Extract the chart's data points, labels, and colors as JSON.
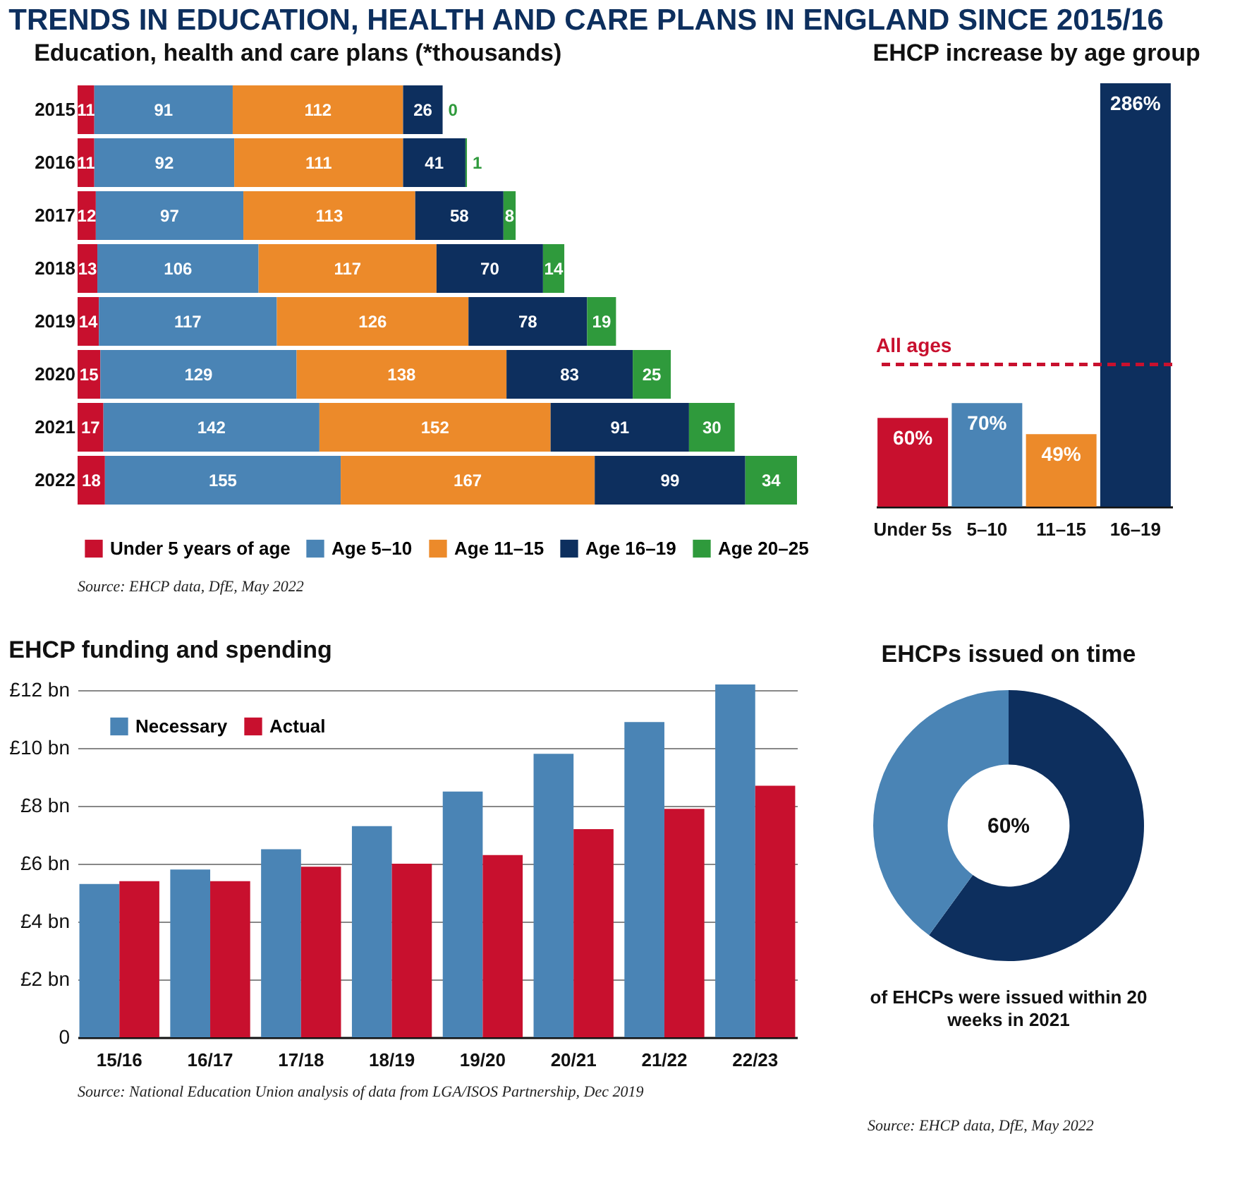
{
  "chart_data": [
    {
      "type": "bar",
      "title": "TRENDS IN EDUCATION, HEALTH AND CARE PLANS IN ENGLAND SINCE 2015/16",
      "subtitle": "Education, health and care plans (*thousands)",
      "orientation": "horizontal",
      "stacked": true,
      "data_labels": true,
      "legend": "bottom",
      "categories": [
        "2015",
        "2016",
        "2017",
        "2018",
        "2019",
        "2020",
        "2021",
        "2022"
      ],
      "series": [
        {
          "name": "Under 5 years of age",
          "color": "#c8102e",
          "values": [
            11,
            11,
            12,
            13,
            14,
            15,
            17,
            18
          ]
        },
        {
          "name": "Age 5–10",
          "color": "#4a84b5",
          "values": [
            91,
            92,
            97,
            106,
            117,
            129,
            142,
            155
          ]
        },
        {
          "name": "Age 11–15",
          "color": "#ec8a2a",
          "values": [
            112,
            111,
            113,
            117,
            126,
            138,
            152,
            167
          ]
        },
        {
          "name": "Age 16–19",
          "color": "#0d2f5e",
          "values": [
            26,
            41,
            58,
            70,
            78,
            83,
            91,
            99
          ]
        },
        {
          "name": "Age 20–25",
          "color": "#2f9a3c",
          "values": [
            0,
            1,
            8,
            14,
            19,
            25,
            30,
            34
          ]
        }
      ],
      "annotations": [
        "Source: EHCP data, DfE, May 2022"
      ]
    },
    {
      "type": "bar",
      "title": "EHCP increase by age group",
      "categories": [
        "Under 5s",
        "5–10",
        "11–15",
        "16–19"
      ],
      "values": [
        60,
        70,
        49,
        286
      ],
      "colors": [
        "#c8102e",
        "#4a84b5",
        "#ec8a2a",
        "#0d2f5e"
      ],
      "value_labels": [
        "60%",
        "70%",
        "49%",
        "286%"
      ],
      "ref_lines": [
        {
          "axis": "y",
          "value": 96,
          "label": "All ages",
          "color": "#c8102e",
          "line_style": "dashed"
        }
      ]
    },
    {
      "type": "bar",
      "title": "EHCP funding and spending",
      "categories": [
        "15/16",
        "16/17",
        "17/18",
        "18/19",
        "19/20",
        "20/21",
        "21/22",
        "22/23"
      ],
      "legend": "top left",
      "grid": "y",
      "ylim": [
        0,
        12.2
      ],
      "yticks": [
        0,
        {
          "value": 2,
          "label": "£2 bn"
        },
        {
          "value": 4,
          "label": "£4 bn"
        },
        {
          "value": 6,
          "label": "£6 bn"
        },
        {
          "value": 8,
          "label": "£8 bn"
        },
        {
          "value": 10,
          "label": "£10 bn"
        },
        {
          "value": 12,
          "label": "£12 bn"
        }
      ],
      "series": [
        {
          "name": "Necessary",
          "color": "#4a84b5",
          "values": [
            5.3,
            5.8,
            6.5,
            7.3,
            8.5,
            9.8,
            10.9,
            12.2
          ]
        },
        {
          "name": "Actual",
          "color": "#c8102e",
          "values": [
            5.4,
            5.4,
            5.9,
            6.0,
            6.3,
            7.2,
            7.9,
            8.7
          ]
        }
      ],
      "annotations": [
        "Source: National Education Union analysis of data from LGA/ISOS Partnership, Dec 2019"
      ]
    },
    {
      "type": "donut",
      "title": "EHCPs issued on time",
      "categories": [
        null,
        null
      ],
      "values": [
        60,
        40
      ],
      "colors": [
        "#0d2f5e",
        "#4a84b5"
      ],
      "annotations": [
        "60%",
        "of EHCPs were issued within 20 weeks in 2021",
        "Source: EHCP data, DfE, May 2022"
      ]
    }
  ]
}
